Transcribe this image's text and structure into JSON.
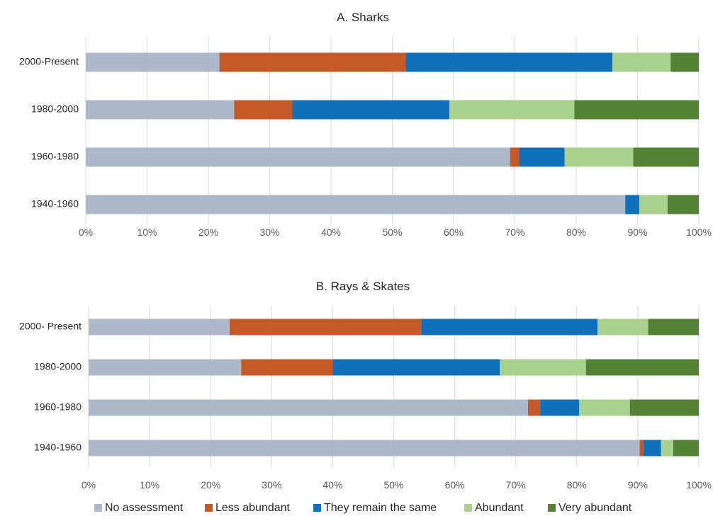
{
  "legend": [
    {
      "label": "No assessment",
      "color": "#adb9ca"
    },
    {
      "label": "Less abundant",
      "color": "#c55a28"
    },
    {
      "label": "They remain the same",
      "color": "#1170ba"
    },
    {
      "label": "Abundant",
      "color": "#a9d18e"
    },
    {
      "label": "Very abundant",
      "color": "#548235"
    }
  ],
  "chart_data": [
    {
      "type": "bar",
      "orientation": "horizontal",
      "stacked": true,
      "title": "A. Sharks",
      "categories": [
        "2000-Present",
        "1980-2000",
        "1960-1980",
        "1940-1960"
      ],
      "series": [
        {
          "name": "No assessment",
          "values": [
            21.8,
            24.2,
            69.2,
            88.0
          ]
        },
        {
          "name": "Less abundant",
          "values": [
            30.4,
            9.5,
            1.5,
            0.0
          ]
        },
        {
          "name": "They remain the same",
          "values": [
            33.7,
            25.6,
            7.4,
            2.3
          ]
        },
        {
          "name": "Abundant",
          "values": [
            9.5,
            20.4,
            11.2,
            4.6
          ]
        },
        {
          "name": "Very abundant",
          "values": [
            4.6,
            20.3,
            10.7,
            5.1
          ]
        }
      ],
      "xlim": [
        0,
        100
      ],
      "xticks": [
        "0%",
        "10%",
        "20%",
        "30%",
        "40%",
        "50%",
        "60%",
        "70%",
        "80%",
        "90%",
        "100%"
      ],
      "grid": true
    },
    {
      "type": "bar",
      "orientation": "horizontal",
      "stacked": true,
      "title": "B. Rays & Skates",
      "categories": [
        "2000- Present",
        "1980-2000",
        "1960-1980",
        "1940-1960"
      ],
      "series": [
        {
          "name": "No assessment",
          "values": [
            23.1,
            25.0,
            72.0,
            90.3
          ]
        },
        {
          "name": "Less abundant",
          "values": [
            31.4,
            15.0,
            2.0,
            0.6
          ]
        },
        {
          "name": "They remain the same",
          "values": [
            28.9,
            27.4,
            6.4,
            2.9
          ]
        },
        {
          "name": "Abundant",
          "values": [
            8.3,
            14.1,
            8.3,
            2.0
          ]
        },
        {
          "name": "Very abundant",
          "values": [
            8.3,
            18.5,
            11.3,
            4.2
          ]
        }
      ],
      "xlim": [
        0,
        100
      ],
      "xticks": [
        "0%",
        "10%",
        "20%",
        "30%",
        "40%",
        "50%",
        "60%",
        "70%",
        "80%",
        "90%",
        "100%"
      ],
      "grid": true
    }
  ]
}
